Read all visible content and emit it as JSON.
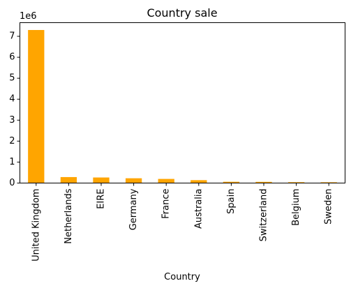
{
  "chart_data": {
    "type": "bar",
    "title": "Country sale",
    "xlabel": "Country",
    "ylabel": "",
    "y_offset_label": "1e6",
    "bar_color": "#ffa500",
    "categories": [
      "United Kingdom",
      "Netherlands",
      "EIRE",
      "Germany",
      "France",
      "Australia",
      "Spain",
      "Switzerland",
      "Belgium",
      "Sweden"
    ],
    "values": [
      7300000,
      285000,
      265000,
      228000,
      197000,
      138000,
      61000,
      57000,
      41000,
      37000
    ],
    "ylim": [
      0,
      7650000
    ],
    "yticks": [
      0,
      1000000,
      2000000,
      3000000,
      4000000,
      5000000,
      6000000,
      7000000
    ],
    "ytick_labels": [
      "0",
      "1",
      "2",
      "3",
      "4",
      "5",
      "6",
      "7"
    ],
    "grid": false,
    "legend": "none"
  }
}
